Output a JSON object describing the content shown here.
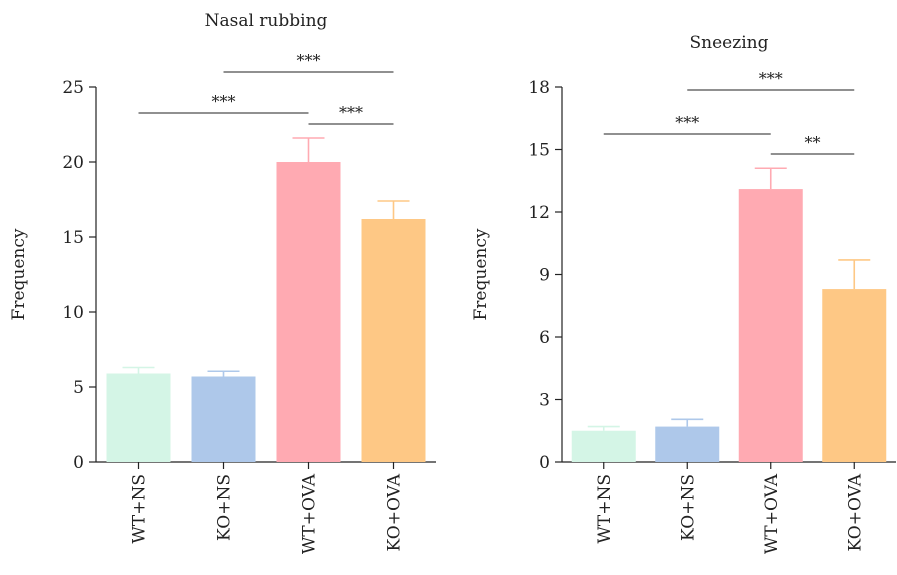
{
  "chart_data": [
    {
      "type": "bar",
      "title": "Nasal rubbing",
      "xlabel": "",
      "ylabel": "Frequency",
      "categories": [
        "WT+NS",
        "KO+NS",
        "WT+OVA",
        "KO+OVA"
      ],
      "values": [
        5.9,
        5.7,
        20.0,
        16.2
      ],
      "errors": [
        0.4,
        0.35,
        1.6,
        1.2
      ],
      "colors": [
        "#d4f5e6",
        "#aec8ea",
        "#ffaab2",
        "#fec885"
      ],
      "ylim": [
        0,
        25
      ],
      "yticks": [
        0,
        5,
        10,
        15,
        20,
        25
      ],
      "significance": [
        {
          "from": "WT+NS",
          "to": "WT+OVA",
          "label": "***"
        },
        {
          "from": "KO+NS",
          "to": "KO+OVA",
          "label": "***"
        },
        {
          "from": "WT+OVA",
          "to": "KO+OVA",
          "label": "***"
        }
      ]
    },
    {
      "type": "bar",
      "title": "Sneezing",
      "xlabel": "",
      "ylabel": "Frequency",
      "categories": [
        "WT+NS",
        "KO+NS",
        "WT+OVA",
        "KO+OVA"
      ],
      "values": [
        1.5,
        1.7,
        13.1,
        8.3
      ],
      "errors": [
        0.2,
        0.35,
        1.0,
        1.4
      ],
      "colors": [
        "#d4f5e6",
        "#aec8ea",
        "#ffaab2",
        "#fec885"
      ],
      "ylim": [
        0,
        18
      ],
      "yticks": [
        0,
        3,
        6,
        9,
        12,
        15,
        18
      ],
      "significance": [
        {
          "from": "WT+NS",
          "to": "WT+OVA",
          "label": "***"
        },
        {
          "from": "KO+NS",
          "to": "KO+OVA",
          "label": "***"
        },
        {
          "from": "WT+OVA",
          "to": "KO+OVA",
          "label": "**"
        }
      ]
    }
  ]
}
